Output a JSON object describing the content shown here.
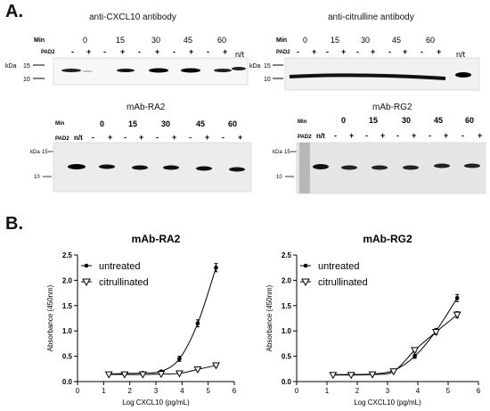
{
  "panels": {
    "a": "A.",
    "b": "B."
  },
  "blots": [
    {
      "title": "anti-CXCL10 antibody",
      "min_label": "Min",
      "pad2_label": "PAD2",
      "kda_label": "kDa",
      "markers": [
        "15",
        "10"
      ],
      "times": [
        "0",
        "15",
        "30",
        "45",
        "60"
      ],
      "signs": [
        "-",
        "+",
        "-",
        "+",
        "-",
        "+",
        "-",
        "+",
        "-",
        "+"
      ],
      "nt_label": "n/t"
    },
    {
      "title": "anti-citrulline antibody",
      "min_label": "Min",
      "pad2_label": "PAD2",
      "kda_label": "kDa",
      "markers": [
        "15",
        "10"
      ],
      "times": [
        "0",
        "15",
        "30",
        "45",
        "60"
      ],
      "signs": [
        "-",
        "+",
        "-",
        "+",
        "-",
        "+",
        "-",
        "+",
        "-",
        "+"
      ],
      "nt_label": "n/t"
    },
    {
      "title": "mAb-RA2",
      "min_label": "Min",
      "pad2_label": "PAD2",
      "kda_label": "kDa",
      "markers": [
        "15",
        "10"
      ],
      "times": [
        "0",
        "15",
        "30",
        "45",
        "60"
      ],
      "signs": [
        "-",
        "+",
        "-",
        "+",
        "-",
        "+",
        "-",
        "+",
        "-",
        "+"
      ],
      "nt_label": "n/t"
    },
    {
      "title": "mAb-RG2",
      "min_label": "Min",
      "pad2_label": "PAD2",
      "kda_label": "kDa",
      "markers": [
        "15",
        "10"
      ],
      "times": [
        "0",
        "15",
        "30",
        "45",
        "60"
      ],
      "signs": [
        "-",
        "+",
        "-",
        "+",
        "-",
        "+",
        "-",
        "+",
        "-",
        "+"
      ],
      "nt_label": "n/t"
    }
  ],
  "chart_data": [
    {
      "type": "line",
      "title": "mAb-RA2",
      "xlabel": "Log CXCL10 (pg/mL)",
      "ylabel": "Absorbance (450nm)",
      "xlim": [
        0,
        6
      ],
      "ylim": [
        0,
        2.5
      ],
      "xticks": [
        "0",
        "1",
        "2",
        "3",
        "4",
        "5",
        "6"
      ],
      "yticks": [
        "0.0",
        "0.5",
        "1.0",
        "1.5",
        "2.0",
        "2.5"
      ],
      "legend_position": "top-left",
      "series": [
        {
          "name": "untreated",
          "marker": "filled-circle",
          "x": [
            1.2,
            1.8,
            2.5,
            3.2,
            3.9,
            4.6,
            5.3
          ],
          "y": [
            0.15,
            0.16,
            0.17,
            0.2,
            0.45,
            1.15,
            2.25
          ],
          "err": [
            0.02,
            0.02,
            0.02,
            0.02,
            0.05,
            0.07,
            0.08
          ]
        },
        {
          "name": "citrullinated",
          "marker": "open-triangle",
          "x": [
            1.2,
            1.8,
            2.5,
            3.2,
            3.9,
            4.6,
            5.3
          ],
          "y": [
            0.14,
            0.14,
            0.14,
            0.15,
            0.16,
            0.24,
            0.32
          ],
          "err": [
            0.01,
            0.01,
            0.01,
            0.01,
            0.01,
            0.02,
            0.02
          ]
        }
      ]
    },
    {
      "type": "line",
      "title": "mAb-RG2",
      "xlabel": "Log CXCL10 (pg/mL)",
      "ylabel": "Absorbance (450nm)",
      "xlim": [
        0,
        6
      ],
      "ylim": [
        0,
        2.5
      ],
      "xticks": [
        "0",
        "1",
        "2",
        "3",
        "4",
        "5",
        "6"
      ],
      "yticks": [
        "0.0",
        "0.5",
        "1.0",
        "1.5",
        "2.0",
        "2.5"
      ],
      "legend_position": "top-left",
      "series": [
        {
          "name": "untreated",
          "marker": "filled-circle",
          "x": [
            1.2,
            1.8,
            2.5,
            3.2,
            3.9,
            4.6,
            5.3
          ],
          "y": [
            0.14,
            0.14,
            0.15,
            0.22,
            0.5,
            1.0,
            1.65
          ],
          "err": [
            0.01,
            0.01,
            0.01,
            0.02,
            0.04,
            0.05,
            0.07
          ]
        },
        {
          "name": "citrullinated",
          "marker": "open-triangle",
          "x": [
            1.2,
            1.8,
            2.5,
            3.2,
            3.9,
            4.6,
            5.3
          ],
          "y": [
            0.13,
            0.13,
            0.14,
            0.2,
            0.62,
            0.98,
            1.32
          ],
          "err": [
            0.01,
            0.01,
            0.01,
            0.02,
            0.04,
            0.05,
            0.06
          ]
        }
      ]
    }
  ]
}
